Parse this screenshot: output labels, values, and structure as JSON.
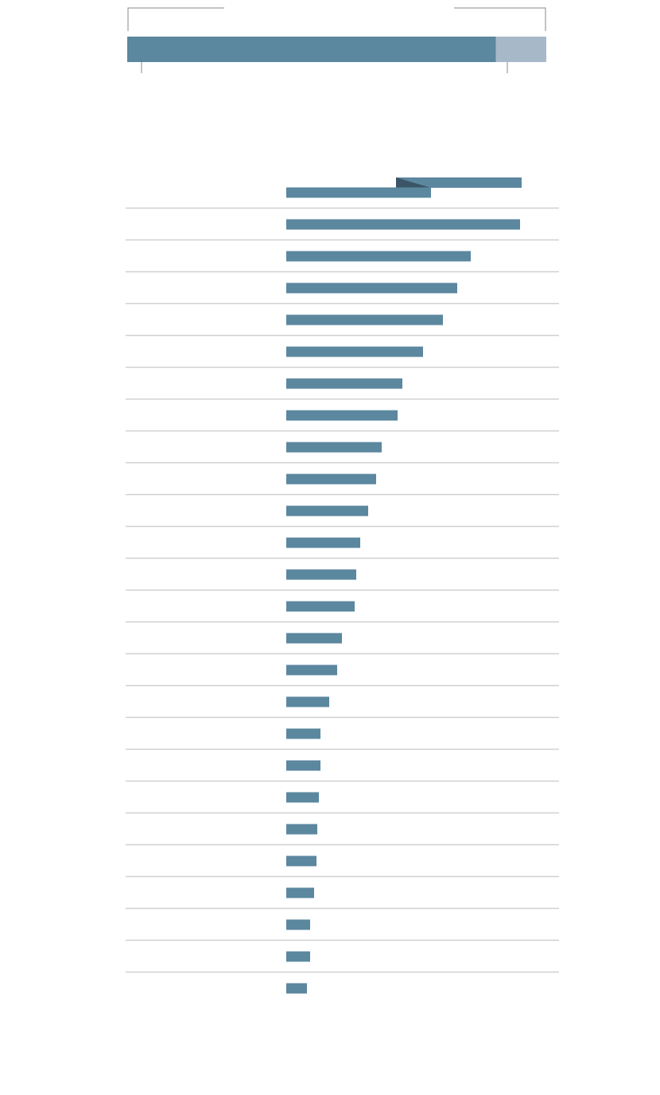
{
  "chart_data": [
    {
      "type": "stacked-bar",
      "series": [
        {
          "color": "#5b879f",
          "values": [
            88
          ]
        },
        {
          "color": "#a7b9c9",
          "values": [
            12
          ]
        }
      ]
    },
    {
      "type": "bar",
      "color": "#5b879f",
      "values": [
        182,
        294,
        232,
        215,
        197,
        172,
        146,
        140,
        120,
        113,
        103,
        93,
        88,
        86,
        70,
        64,
        54,
        43,
        43,
        41,
        39,
        38,
        35,
        30,
        30,
        26
      ]
    }
  ]
}
